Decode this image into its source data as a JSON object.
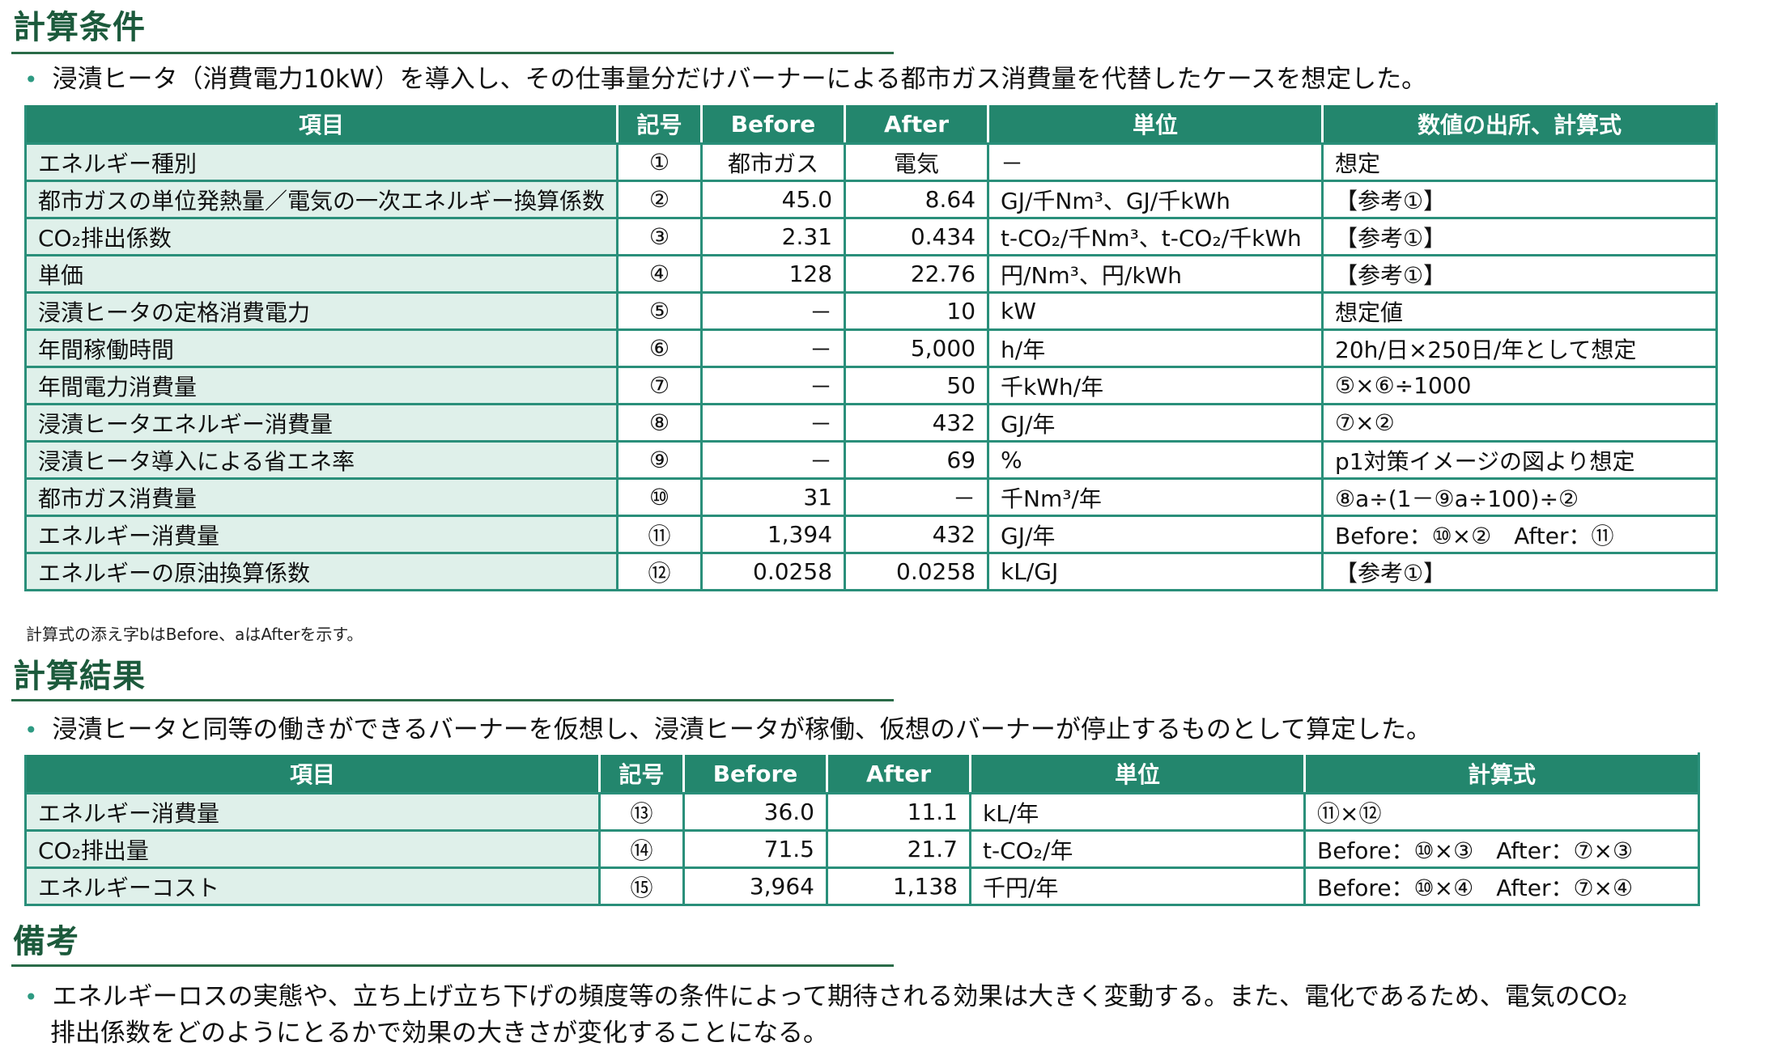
{
  "cond": {
    "title": "計算条件",
    "bullet": "浸漬ヒータ（消費電力10kW）を導入し、その仕事量分だけバーナーによる都市ガス消費量を代替したケースを想定した。",
    "headers": [
      "項目",
      "記号",
      "Before",
      "After",
      "単位",
      "数値の出所、計算式"
    ],
    "rows": [
      [
        "エネルギー種別",
        "①",
        "都市ガス",
        "電気",
        "－",
        "想定"
      ],
      [
        "都市ガスの単位発熱量／電気の一次エネルギー換算係数",
        "②",
        "45.0",
        "8.64",
        "GJ/千Nm³、GJ/千kWh",
        "【参考①】"
      ],
      [
        "CO₂排出係数",
        "③",
        "2.31",
        "0.434",
        "t-CO₂/千Nm³、t-CO₂/千kWh",
        "【参考①】"
      ],
      [
        "単価",
        "④",
        "128",
        "22.76",
        "円/Nm³、円/kWh",
        "【参考①】"
      ],
      [
        "浸漬ヒータの定格消費電力",
        "⑤",
        "－",
        "10",
        "kW",
        "想定値"
      ],
      [
        "年間稼働時間",
        "⑥",
        "－",
        "5,000",
        "h/年",
        "20h/日×250日/年として想定"
      ],
      [
        "年間電力消費量",
        "⑦",
        "－",
        "50",
        "千kWh/年",
        "⑤×⑥÷1000"
      ],
      [
        "浸漬ヒータエネルギー消費量",
        "⑧",
        "－",
        "432",
        "GJ/年",
        "⑦×②"
      ],
      [
        "浸漬ヒータ導入による省エネ率",
        "⑨",
        "－",
        "69",
        "%",
        "p1対策イメージの図より想定"
      ],
      [
        "都市ガス消費量",
        "⑩",
        "31",
        "－",
        "千Nm³/年",
        "⑧a÷(1－⑨a÷100)÷②"
      ],
      [
        "エネルギー消費量",
        "⑪",
        "1,394",
        "432",
        "GJ/年",
        "Before：⑩×②　After：⑪"
      ],
      [
        "エネルギーの原油換算係数",
        "⑫",
        "0.0258",
        "0.0258",
        "kL/GJ",
        "【参考①】"
      ]
    ],
    "note": "計算式の添え字bはBefore、aはAfterを示す。"
  },
  "result": {
    "title": "計算結果",
    "bullet": "浸漬ヒータと同等の働きができるバーナーを仮想し、浸漬ヒータが稼働、仮想のバーナーが停止するものとして算定した。",
    "headers": [
      "項目",
      "記号",
      "Before",
      "After",
      "単位",
      "計算式"
    ],
    "rows": [
      [
        "エネルギー消費量",
        "⑬",
        "36.0",
        "11.1",
        "kL/年",
        "⑪×⑫"
      ],
      [
        "CO₂排出量",
        "⑭",
        "71.5",
        "21.7",
        "t-CO₂/年",
        "Before：⑩×③　After：⑦×③"
      ],
      [
        "エネルギーコスト",
        "⑮",
        "3,964",
        "1,138",
        "千円/年",
        "Before：⑩×④　After：⑦×④"
      ]
    ]
  },
  "remarks": {
    "title": "備考",
    "line1": "エネルギーロスの実態や、立ち上げ立ち下げの頻度等の条件によって期待される効果は大きく変動する。また、電化であるため、電気のCO₂",
    "line2": "排出係数をどのようにとるかで効果の大きさが変化することになる。"
  },
  "colors": {
    "header_bg": "#23866d",
    "item_bg": "#dff0ea",
    "title": "#1c5a3c"
  }
}
